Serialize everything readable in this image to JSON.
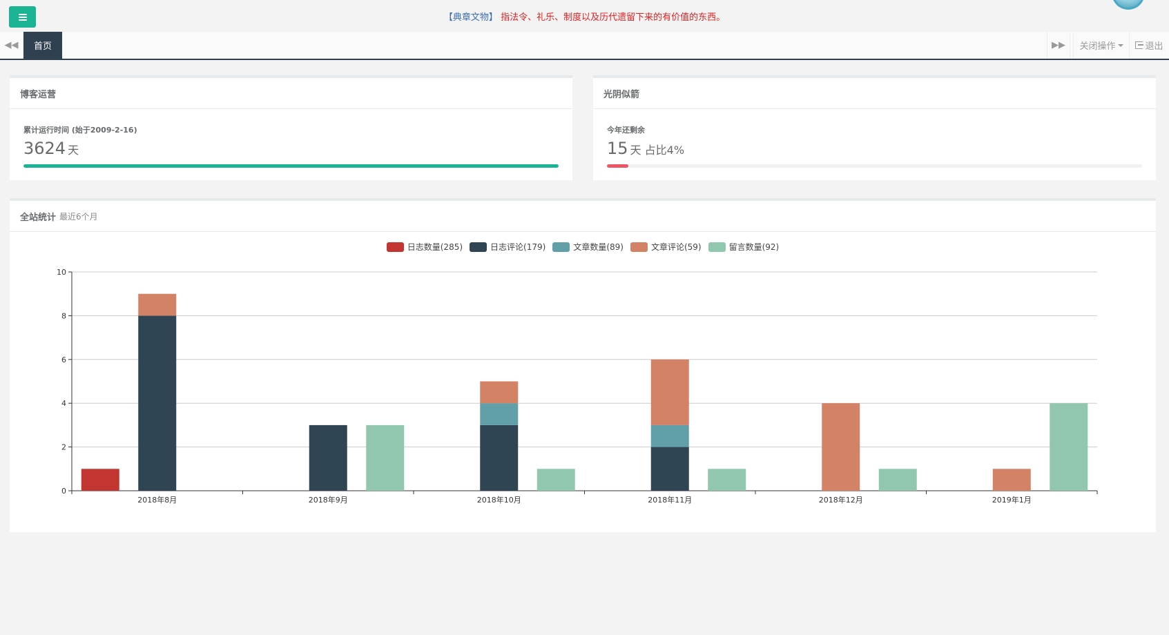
{
  "topbar": {
    "notice_bracket": "【典章文物】",
    "notice_text": "指法令、礼乐、制度以及历代遗留下来的有价值的东西。"
  },
  "tabs": {
    "home_label": "首页",
    "ops_label": "关闭操作",
    "logout_label": "退出"
  },
  "blog_panel": {
    "title": "博客运营",
    "label": "累计运行时间 (始于2009-2-16)",
    "value": "3624",
    "unit": "天",
    "progress": 1.0,
    "color": "#1ab394"
  },
  "time_panel": {
    "title": "光阴似箭",
    "label": "今年还剩余",
    "value": "15",
    "unit": "天 占比4%",
    "progress": 0.04,
    "color": "#ed5565"
  },
  "stats_panel": {
    "title": "全站统计",
    "subtitle": "最近6个月"
  },
  "chart_data": {
    "type": "bar",
    "categories": [
      "2018年8月",
      "2018年9月",
      "2018年10月",
      "2018年11月",
      "2018年12月",
      "2019年1月"
    ],
    "ylim": [
      0,
      10
    ],
    "yticks": [
      0,
      2,
      4,
      6,
      8,
      10
    ],
    "grid": true,
    "legend_position": "top-center",
    "series": [
      {
        "name": "日志数量(285)",
        "color": "#c23531",
        "values": [
          1,
          0,
          0,
          0,
          0,
          0
        ]
      },
      {
        "name": "日志评论(179)",
        "color": "#2f4554",
        "values": [
          8,
          3,
          3,
          2,
          0,
          0
        ]
      },
      {
        "name": "文章数量(89)",
        "color": "#61a0a8",
        "values": [
          0,
          0,
          1,
          1,
          0,
          0
        ]
      },
      {
        "name": "文章评论(59)",
        "color": "#d48265",
        "values": [
          1,
          0,
          1,
          3,
          4,
          1
        ]
      },
      {
        "name": "留言数量(92)",
        "color": "#91c7ae",
        "values": [
          0,
          3,
          1,
          1,
          1,
          4
        ]
      }
    ],
    "stacks": [
      [
        0
      ],
      [
        1,
        2,
        3
      ],
      [
        4
      ]
    ]
  }
}
